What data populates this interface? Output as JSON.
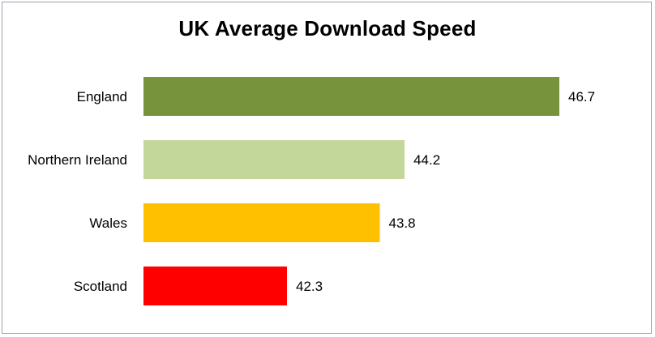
{
  "chart_data": {
    "type": "bar",
    "orientation": "horizontal",
    "title": "UK Average Download Speed",
    "categories": [
      "England",
      "Northern Ireland",
      "Wales",
      "Scotland"
    ],
    "values": [
      46.7,
      44.2,
      43.8,
      42.3
    ],
    "value_labels": [
      "46.7",
      "44.2",
      "43.8",
      "42.3"
    ],
    "colors": [
      "#77933c",
      "#c4d79b",
      "#ffc000",
      "#ff0000"
    ],
    "xlabel": "",
    "ylabel": "",
    "axis_visible": false,
    "grid": false,
    "legend": "none"
  }
}
